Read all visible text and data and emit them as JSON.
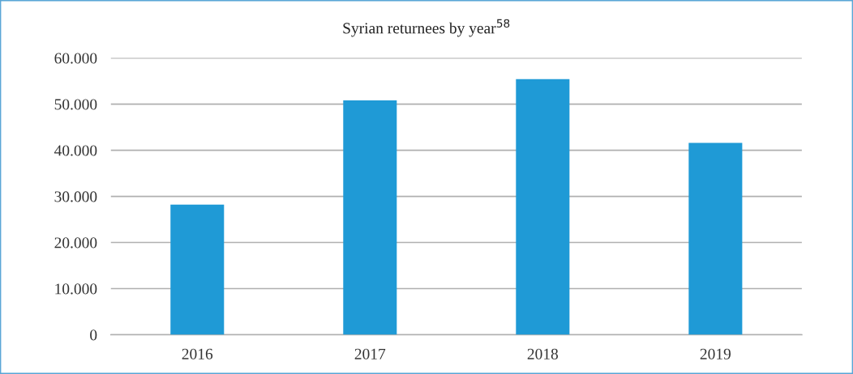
{
  "chart_data": {
    "type": "bar",
    "title": "Syrian returnees by year$^{58}$",
    "categories": [
      "2016",
      "2017",
      "2018",
      "2019"
    ],
    "values": [
      28200,
      50800,
      55400,
      41600
    ],
    "color": "#1f9ad6",
    "ylim": [
      0,
      60000
    ],
    "yticks": [
      {
        "value": 0,
        "label": "0"
      },
      {
        "value": 10000,
        "label": "10.000"
      },
      {
        "value": 20000,
        "label": "20.000"
      },
      {
        "value": 30000,
        "label": "30.000"
      },
      {
        "value": 40000,
        "label": "40.000"
      },
      {
        "value": 50000,
        "label": "50.000"
      },
      {
        "value": 60000,
        "label": "60.000"
      }
    ],
    "grid": "y",
    "legend": false
  }
}
